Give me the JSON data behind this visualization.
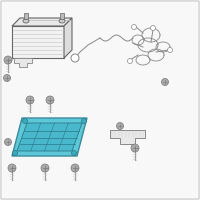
{
  "background_color": "#f0f0f0",
  "part_bg": "#f8f8f8",
  "battery_fill": "#f2f2f2",
  "battery_stroke": "#666666",
  "battery_lines": "#cccccc",
  "tray_fill": "#5ec8d8",
  "tray_stroke": "#3a8a9a",
  "tray_inner": "#4ab8cc",
  "tray_line": "#2a7a8a",
  "bracket_fill": "#e8e8e8",
  "bracket_stroke": "#888888",
  "wire_color": "#888888",
  "screw_color": "#aaaaaa",
  "screw_stroke": "#777777",
  "border_color": "#cccccc"
}
